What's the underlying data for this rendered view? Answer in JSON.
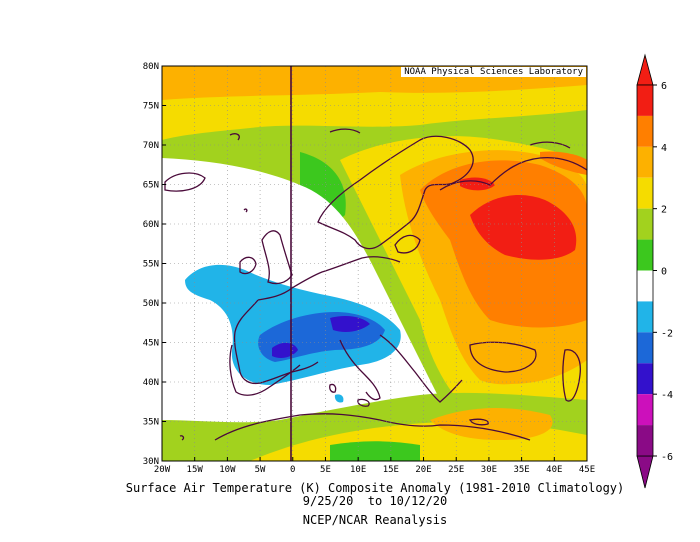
{
  "map": {
    "credit": "NOAA Physical Sciences Laboratory",
    "lat_labels": [
      "80N",
      "75N",
      "70N",
      "65N",
      "60N",
      "55N",
      "50N",
      "45N",
      "40N",
      "35N",
      "30N"
    ],
    "lon_labels": [
      "20W",
      "15W",
      "10W",
      "5W",
      "0",
      "5E",
      "10E",
      "15E",
      "20E",
      "25E",
      "30E",
      "35E",
      "40E",
      "45E"
    ],
    "extent": {
      "lon_min": -20,
      "lon_max": 45,
      "lat_min": 30,
      "lat_max": 80
    }
  },
  "colorbar": {
    "labels": [
      "6",
      "4",
      "2",
      "0",
      "-2",
      "-4",
      "-6"
    ],
    "colors": [
      "#f21e14",
      "#ff7f00",
      "#fdb100",
      "#f5dc00",
      "#a2d21e",
      "#3cc81e",
      "#ffffff",
      "#21b4e8",
      "#1c68d8",
      "#3311cc",
      "#cc10bb",
      "#8a0a86"
    ]
  },
  "caption": {
    "line1": "Surface Air Temperature (K) Composite Anomaly (1981-2010 Climatology)",
    "line2": "9/25/20  to 10/12/20",
    "line3": "NCEP/NCAR Reanalysis"
  }
}
